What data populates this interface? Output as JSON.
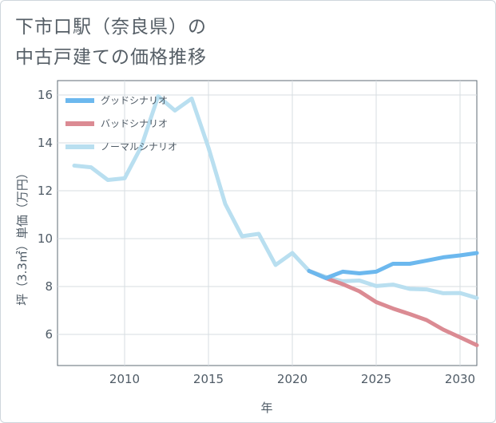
{
  "chart_data": {
    "type": "line",
    "title_lines": [
      "下市口駅（奈良県）の",
      "中古戸建ての価格推移"
    ],
    "xlabel": "年",
    "ylabel": "坪（3.3㎡）単価（万円）",
    "xlim": [
      2006,
      2031
    ],
    "ylim": [
      4.7,
      16.6
    ],
    "xticks": [
      2010,
      2015,
      2020,
      2025,
      2030
    ],
    "yticks": [
      6,
      8,
      10,
      12,
      14,
      16
    ],
    "grid": true,
    "legend_position": "top-left",
    "series": [
      {
        "name": "グッドシナリオ",
        "color": "#6cb8ee",
        "x": [
          2021,
          2022,
          2023,
          2024,
          2025,
          2026,
          2027,
          2028,
          2029,
          2030,
          2031
        ],
        "y": [
          8.65,
          8.35,
          8.62,
          8.55,
          8.62,
          8.95,
          8.95,
          9.08,
          9.22,
          9.3,
          9.4
        ]
      },
      {
        "name": "バッドシナリオ",
        "color": "#db8b93",
        "x": [
          2021,
          2022,
          2023,
          2024,
          2025,
          2026,
          2027,
          2028,
          2029,
          2030,
          2031
        ],
        "y": [
          8.65,
          8.35,
          8.1,
          7.8,
          7.35,
          7.08,
          6.85,
          6.6,
          6.2,
          5.88,
          5.55
        ]
      },
      {
        "name": "ノーマルシナリオ",
        "color": "#b9dff0",
        "x": [
          2007,
          2008,
          2009,
          2010,
          2011,
          2012,
          2013,
          2014,
          2015,
          2016,
          2017,
          2018,
          2019,
          2020,
          2021,
          2022,
          2023,
          2024,
          2025,
          2026,
          2027,
          2028,
          2029,
          2030,
          2031
        ],
        "y": [
          13.05,
          12.98,
          12.45,
          12.52,
          13.85,
          15.95,
          15.35,
          15.85,
          13.8,
          11.45,
          10.1,
          10.2,
          8.9,
          9.4,
          8.65,
          8.4,
          8.22,
          8.25,
          8.02,
          8.08,
          7.9,
          7.88,
          7.72,
          7.73,
          7.52
        ]
      }
    ]
  }
}
